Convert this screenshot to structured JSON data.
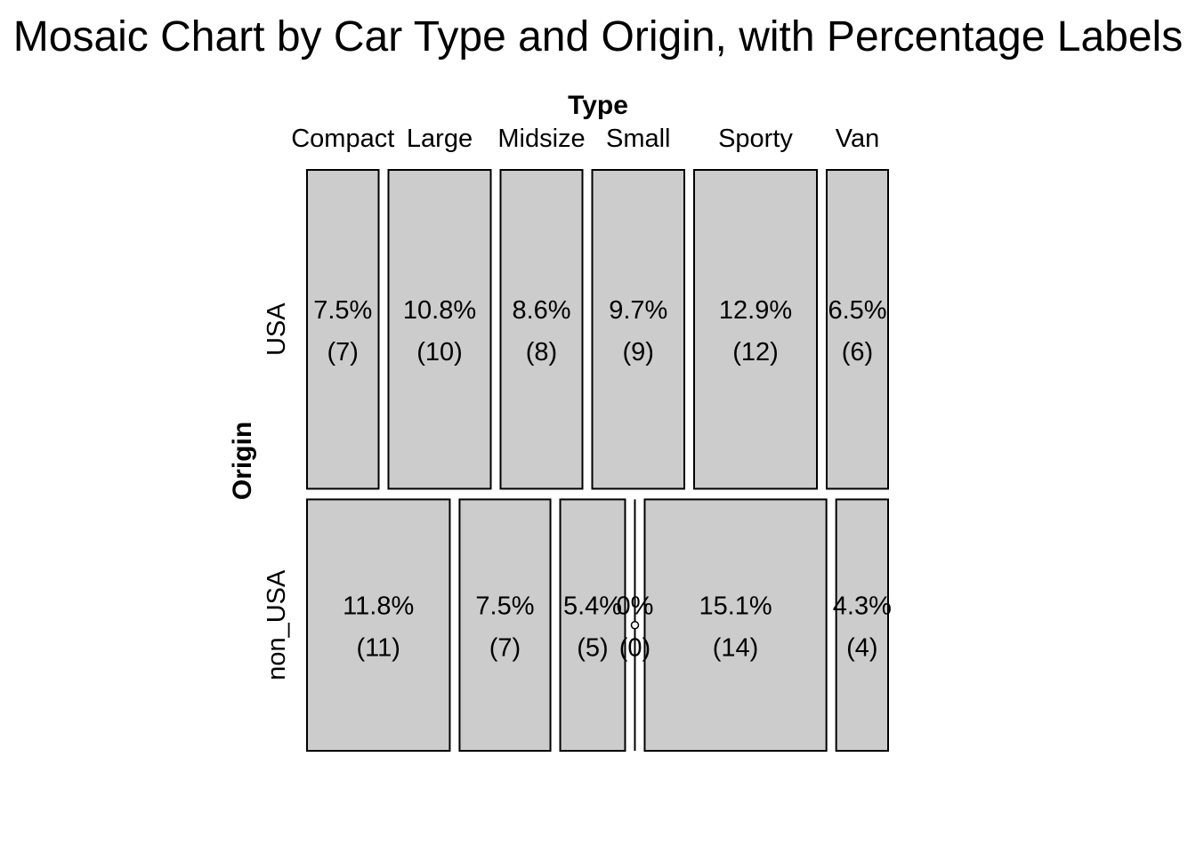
{
  "chart_data": {
    "type": "mosaic",
    "title": "Mosaic Chart by Car Type and Origin, with Percentage Labels",
    "xlabel": "Type",
    "ylabel": "Origin",
    "x_categories": [
      "Compact",
      "Large",
      "Midsize",
      "Small",
      "Sporty",
      "Van"
    ],
    "y_categories": [
      "USA",
      "non_USA"
    ],
    "cells": [
      {
        "origin": "USA",
        "type": "Compact",
        "count": 7,
        "percent": "7.5%"
      },
      {
        "origin": "USA",
        "type": "Large",
        "count": 10,
        "percent": "10.8%"
      },
      {
        "origin": "USA",
        "type": "Midsize",
        "count": 8,
        "percent": "8.6%"
      },
      {
        "origin": "USA",
        "type": "Small",
        "count": 9,
        "percent": "9.7%"
      },
      {
        "origin": "USA",
        "type": "Sporty",
        "count": 12,
        "percent": "12.9%"
      },
      {
        "origin": "USA",
        "type": "Van",
        "count": 6,
        "percent": "6.5%"
      },
      {
        "origin": "non_USA",
        "type": "Compact",
        "count": 11,
        "percent": "11.8%"
      },
      {
        "origin": "non_USA",
        "type": "Large",
        "count": 7,
        "percent": "7.5%"
      },
      {
        "origin": "non_USA",
        "type": "Midsize",
        "count": 5,
        "percent": "5.4%"
      },
      {
        "origin": "non_USA",
        "type": "Small",
        "count": 0,
        "percent": "0%"
      },
      {
        "origin": "non_USA",
        "type": "Sporty",
        "count": 14,
        "percent": "15.1%"
      },
      {
        "origin": "non_USA",
        "type": "Van",
        "count": 4,
        "percent": "4.3%"
      }
    ],
    "tile_fill": "#cccccc",
    "grid": false,
    "legend": "none"
  }
}
